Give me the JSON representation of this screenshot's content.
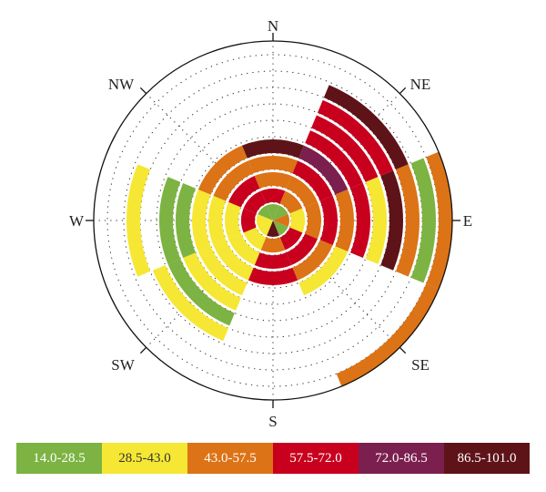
{
  "chart_data": {
    "type": "polar-segmented-rose",
    "title": "",
    "directions": [
      "N",
      "NE",
      "E",
      "SE",
      "S",
      "SW",
      "W",
      "NW"
    ],
    "compass_labels": {
      "N": "N",
      "NE": "NE",
      "E": "E",
      "SE": "SE",
      "S": "S",
      "SW": "SW",
      "W": "W",
      "NW": "NW"
    },
    "ring_count": 10,
    "grid": true,
    "legend": {
      "position": "bottom",
      "items": [
        {
          "label": "14.0-28.5",
          "color": "#7cb342",
          "text_color": "#ffffff"
        },
        {
          "label": "28.5-43.0",
          "color": "#f5e733",
          "text_color": "#333333"
        },
        {
          "label": "43.0-57.5",
          "color": "#dc7316",
          "text_color": "#ffffff"
        },
        {
          "label": "57.5-72.0",
          "color": "#c8001e",
          "text_color": "#ffffff"
        },
        {
          "label": "72.0-86.5",
          "color": "#7b1f4e",
          "text_color": "#ffffff"
        },
        {
          "label": "86.5-101.0",
          "color": "#5e1318",
          "text_color": "#ffffff"
        }
      ]
    },
    "sectors": [
      {
        "direction": "N",
        "rings": [
          1,
          4,
          3,
          3,
          6
        ]
      },
      {
        "direction": "NE",
        "rings": [
          1,
          3,
          3,
          4,
          5,
          4,
          4,
          4,
          6
        ]
      },
      {
        "direction": "E",
        "rings": [
          3,
          2,
          3,
          4,
          3,
          4,
          2,
          6,
          3,
          1,
          3
        ]
      },
      {
        "direction": "SE",
        "rings": [
          1,
          4,
          4,
          3,
          2,
          0,
          0,
          0,
          0,
          0,
          3
        ]
      },
      {
        "direction": "S",
        "rings": [
          6,
          3,
          4,
          4
        ]
      },
      {
        "direction": "SW",
        "rings": [
          2,
          2,
          2,
          2,
          2,
          2,
          1,
          2
        ]
      },
      {
        "direction": "W",
        "rings": [
          2,
          4,
          2,
          2,
          2,
          1,
          1,
          0,
          2
        ]
      },
      {
        "direction": "NW",
        "rings": [
          1,
          4,
          4,
          3,
          3
        ]
      }
    ]
  }
}
